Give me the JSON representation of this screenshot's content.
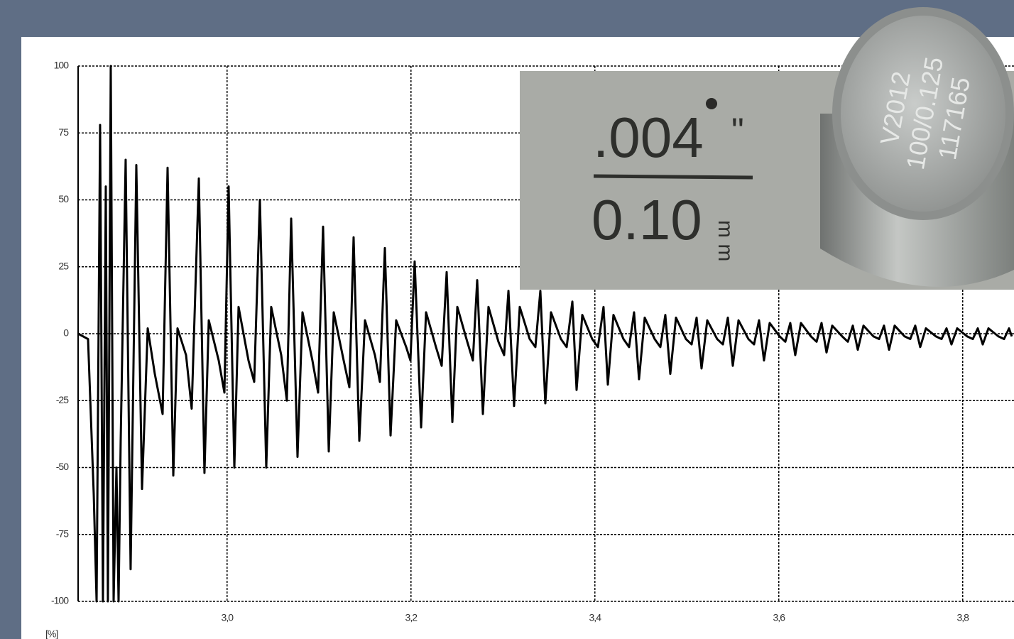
{
  "chart_data": {
    "type": "line",
    "ylabel": "[%]",
    "color": "#000000",
    "grid": true,
    "xlim": [
      2.838,
      3.8558
    ],
    "ylim": [
      -100,
      100
    ],
    "xticks": [
      {
        "value": 3.0,
        "label": "3,0"
      },
      {
        "value": 3.2,
        "label": "3,2"
      },
      {
        "value": 3.4,
        "label": "3,4"
      },
      {
        "value": 3.6,
        "label": "3,6"
      },
      {
        "value": 3.8,
        "label": "3,8"
      }
    ],
    "yticks": [
      -100,
      -75,
      -50,
      -25,
      0,
      25,
      50,
      75,
      100
    ],
    "x": [
      2.838,
      2.8488,
      2.855,
      2.8581,
      2.8619,
      2.865,
      2.8681,
      2.8704,
      2.8735,
      2.8766,
      2.8797,
      2.882,
      2.8843,
      2.8897,
      2.8951,
      2.9013,
      2.9075,
      2.9137,
      2.9214,
      2.9299,
      2.9353,
      2.9415,
      2.9461,
      2.9554,
      2.9615,
      2.9693,
      2.9754,
      2.9801,
      2.9909,
      2.9971,
      3.0017,
      3.0079,
      3.0125,
      3.0233,
      3.0295,
      3.0357,
      3.0426,
      3.048,
      3.0589,
      3.065,
      3.0697,
      3.0766,
      3.082,
      3.0928,
      3.099,
      3.1044,
      3.1106,
      3.116,
      3.1268,
      3.133,
      3.1376,
      3.1438,
      3.15,
      3.1608,
      3.1662,
      3.1716,
      3.1778,
      3.1839,
      3.1948,
      3.1994,
      3.204,
      3.211,
      3.2164,
      3.2272,
      3.2334,
      3.2388,
      3.245,
      3.2504,
      3.2612,
      3.2673,
      3.272,
      3.2782,
      3.2843,
      3.2951,
      3.3013,
      3.306,
      3.3121,
      3.3183,
      3.3291,
      3.3353,
      3.3407,
      3.3461,
      3.3523,
      3.3631,
      3.3693,
      3.3755,
      3.3801,
      3.3863,
      3.3971,
      3.4033,
      3.4094,
      3.4141,
      3.4202,
      3.4311,
      3.4372,
      3.4426,
      3.448,
      3.4542,
      3.465,
      3.4712,
      3.4766,
      3.482,
      3.4882,
      3.499,
      3.5052,
      3.5106,
      3.516,
      3.5222,
      3.533,
      3.5392,
      3.5446,
      3.55,
      3.5562,
      3.567,
      3.5731,
      3.5785,
      3.5839,
      3.5901,
      3.6009,
      3.6071,
      3.6125,
      3.6179,
      3.6241,
      3.6349,
      3.6411,
      3.6465,
      3.6519,
      3.6581,
      3.6689,
      3.6751,
      3.6805,
      3.6859,
      3.6921,
      3.7029,
      3.7091,
      3.7144,
      3.7199,
      3.726,
      3.7368,
      3.743,
      3.7484,
      3.7538,
      3.76,
      3.7708,
      3.777,
      3.7824,
      3.7878,
      3.794,
      3.8048,
      3.811,
      3.8164,
      3.8218,
      3.828,
      3.8388,
      3.845,
      3.8504,
      3.8534
    ],
    "values": [
      0,
      -2,
      -60,
      -100,
      78,
      -100,
      55,
      -100,
      100,
      -100,
      -50,
      -100,
      -40,
      65,
      -88,
      63,
      -58,
      2,
      -15,
      -30,
      62,
      -53,
      2,
      -8,
      -28,
      58,
      -52,
      5,
      -10,
      -22,
      55,
      -50,
      10,
      -10,
      -18,
      50,
      -50,
      10,
      -8,
      -25,
      43,
      -46,
      8,
      -10,
      -22,
      40,
      -44,
      8,
      -10,
      -20,
      36,
      -40,
      5,
      -8,
      -18,
      32,
      -38,
      5,
      -5,
      -10,
      27,
      -35,
      8,
      -5,
      -12,
      23,
      -33,
      10,
      -3,
      -10,
      20,
      -30,
      10,
      -3,
      -8,
      16,
      -27,
      10,
      -2,
      -5,
      16,
      -26,
      8,
      -2,
      -5,
      12,
      -21,
      7,
      -2,
      -5,
      10,
      -19,
      7,
      -2,
      -5,
      8,
      -17,
      6,
      -2,
      -5,
      7,
      -15,
      6,
      -2,
      -4,
      6,
      -13,
      5,
      -2,
      -4,
      6,
      -12,
      5,
      -2,
      -4,
      5,
      -10,
      4,
      -1,
      -3,
      4,
      -8,
      4,
      -1,
      -3,
      4,
      -7,
      3,
      -1,
      -3,
      3,
      -6,
      3,
      -1,
      -2,
      3,
      -6,
      3,
      -1,
      -2,
      3,
      -5,
      2,
      -1,
      -2,
      2,
      -4,
      2,
      -1,
      -2,
      2,
      -4,
      2,
      -1,
      -2,
      2,
      -1
    ]
  },
  "photo": {
    "inch_label": ".004",
    "inch_mark": "\"",
    "mm_label": "0.10",
    "mm_unit": "m m",
    "transducer_text": [
      "V2012",
      "100/0.125",
      "117165"
    ]
  }
}
